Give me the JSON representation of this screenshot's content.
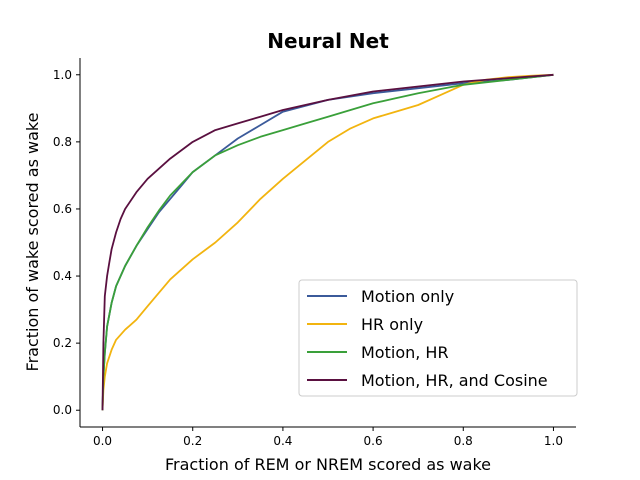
{
  "chart_data": {
    "type": "line",
    "title": "Neural Net",
    "xlabel": "Fraction of REM or NREM scored as wake",
    "ylabel": "Fraction of wake scored as wake",
    "xlim": [
      -0.05,
      1.05
    ],
    "ylim": [
      -0.05,
      1.05
    ],
    "xticks": [
      "0.0",
      "0.2",
      "0.4",
      "0.6",
      "0.8",
      "1.0"
    ],
    "yticks": [
      "0.0",
      "0.2",
      "0.4",
      "0.6",
      "0.8",
      "1.0"
    ],
    "grid": false,
    "legend_position": "lower-right",
    "series": [
      {
        "name": "Motion only",
        "color": "#3b5a9a",
        "x": [
          0.0,
          0.002,
          0.005,
          0.01,
          0.02,
          0.03,
          0.05,
          0.075,
          0.1,
          0.125,
          0.15,
          0.175,
          0.2,
          0.25,
          0.3,
          0.35,
          0.4,
          0.5,
          0.6,
          0.7,
          0.8,
          0.9,
          1.0
        ],
        "y": [
          0.0,
          0.1,
          0.17,
          0.25,
          0.32,
          0.37,
          0.43,
          0.49,
          0.54,
          0.59,
          0.63,
          0.67,
          0.71,
          0.76,
          0.81,
          0.85,
          0.89,
          0.925,
          0.945,
          0.96,
          0.975,
          0.985,
          1.0
        ]
      },
      {
        "name": "HR only",
        "color": "#f2b40f",
        "x": [
          0.0,
          0.002,
          0.005,
          0.01,
          0.02,
          0.03,
          0.05,
          0.075,
          0.1,
          0.125,
          0.15,
          0.2,
          0.25,
          0.3,
          0.35,
          0.4,
          0.45,
          0.5,
          0.55,
          0.6,
          0.65,
          0.7,
          0.75,
          0.8,
          0.85,
          0.9,
          0.95,
          1.0
        ],
        "y": [
          0.0,
          0.06,
          0.1,
          0.14,
          0.18,
          0.21,
          0.24,
          0.27,
          0.31,
          0.35,
          0.39,
          0.45,
          0.5,
          0.56,
          0.63,
          0.69,
          0.745,
          0.8,
          0.84,
          0.87,
          0.89,
          0.91,
          0.94,
          0.97,
          0.985,
          0.993,
          0.997,
          1.0
        ]
      },
      {
        "name": "Motion, HR",
        "color": "#3aa03a",
        "x": [
          0.0,
          0.002,
          0.005,
          0.01,
          0.02,
          0.03,
          0.05,
          0.075,
          0.1,
          0.125,
          0.15,
          0.2,
          0.25,
          0.3,
          0.35,
          0.4,
          0.45,
          0.5,
          0.55,
          0.6,
          0.65,
          0.7,
          0.8,
          0.9,
          1.0
        ],
        "y": [
          0.0,
          0.1,
          0.17,
          0.25,
          0.32,
          0.37,
          0.43,
          0.49,
          0.545,
          0.595,
          0.64,
          0.71,
          0.76,
          0.79,
          0.815,
          0.835,
          0.855,
          0.875,
          0.895,
          0.915,
          0.93,
          0.945,
          0.97,
          0.985,
          1.0
        ]
      },
      {
        "name": "Motion, HR, and Cosine",
        "color": "#5a1040",
        "x": [
          0.0,
          0.002,
          0.005,
          0.01,
          0.015,
          0.02,
          0.03,
          0.04,
          0.05,
          0.075,
          0.1,
          0.125,
          0.15,
          0.2,
          0.25,
          0.3,
          0.35,
          0.4,
          0.5,
          0.6,
          0.7,
          0.8,
          0.9,
          1.0
        ],
        "y": [
          0.0,
          0.2,
          0.34,
          0.4,
          0.44,
          0.48,
          0.53,
          0.57,
          0.6,
          0.65,
          0.69,
          0.72,
          0.75,
          0.8,
          0.835,
          0.855,
          0.875,
          0.895,
          0.925,
          0.95,
          0.965,
          0.98,
          0.99,
          1.0
        ]
      }
    ]
  }
}
